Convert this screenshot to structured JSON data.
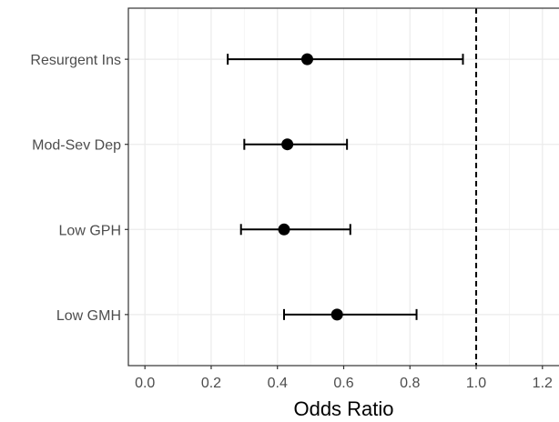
{
  "chart_data": {
    "type": "forest",
    "title": "",
    "xlabel": "Odds Ratio",
    "ylabel": "",
    "xlim": [
      -0.05,
      1.25
    ],
    "x_ticks": [
      "0.0",
      "0.2",
      "0.4",
      "0.6",
      "0.8",
      "1.0",
      "1.2"
    ],
    "x_tick_values": [
      0.0,
      0.2,
      0.4,
      0.6,
      0.8,
      1.0,
      1.2
    ],
    "reference_line": 1.0,
    "categories": [
      "Resurgent Ins",
      "Mod-Sev Dep",
      "Low GPH",
      "Low GMH"
    ],
    "estimates": [
      0.49,
      0.43,
      0.42,
      0.58
    ],
    "lower": [
      0.25,
      0.3,
      0.29,
      0.42
    ],
    "upper": [
      0.96,
      0.61,
      0.62,
      0.82
    ],
    "grid": true,
    "colors": {
      "mark": "#000000",
      "grid_major": "#ebebeb",
      "grid_minor": "#f2f2f2",
      "panel_border": "#333333",
      "tick_text": "#4d4d4d"
    }
  }
}
